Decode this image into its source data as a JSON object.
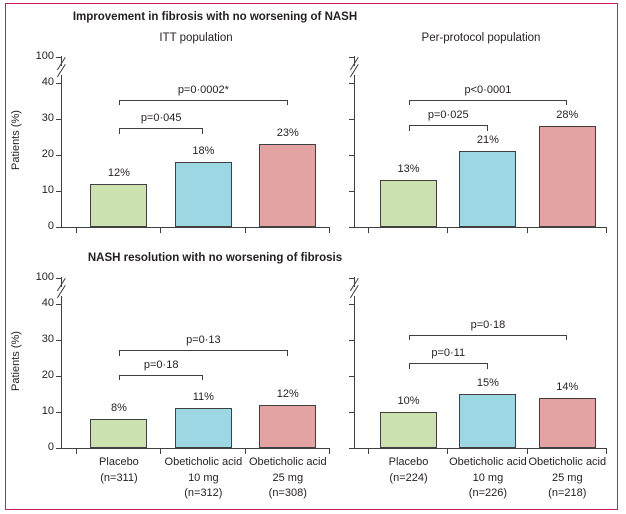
{
  "figure": {
    "frame_color": "#c81e5a",
    "text_color": "#231f20",
    "axis_color": "#404040",
    "bar_border_color": "#404040",
    "bar_colors": [
      "#cbe2b0",
      "#9ed7e4",
      "#e2a3a2"
    ],
    "y_axis": {
      "title": "Patients (%)",
      "ticks": [
        0,
        10,
        20,
        30,
        40
      ],
      "break_label": "100"
    }
  },
  "chart_data": [
    {
      "type": "bar",
      "section_title": "Improvement in fibrosis with no worsening of NASH",
      "subtitle": "ITT population",
      "categories": [
        "Placebo (n=311)",
        "Obeticholic acid 10 mg (n=312)",
        "Obeticholic acid 25 mg (n=308)"
      ],
      "category_lines": [
        [
          "Placebo",
          "(n=311)"
        ],
        [
          "Obeticholic acid",
          "10 mg",
          "(n=312)"
        ],
        [
          "Obeticholic acid",
          "25 mg",
          "(n=308)"
        ]
      ],
      "values": [
        12,
        18,
        23
      ],
      "bar_labels": [
        "12%",
        "18%",
        "23%"
      ],
      "ylabel": "Patients (%)",
      "yticks": [
        0,
        10,
        20,
        30,
        40
      ],
      "y_break_label": "100",
      "ylim_visible": [
        0,
        45
      ],
      "significance": [
        {
          "label": "p=0·045",
          "between": [
            0,
            1
          ],
          "height": 27.5
        },
        {
          "label": "p=0·0002*",
          "between": [
            0,
            2
          ],
          "height": 35.3
        }
      ]
    },
    {
      "type": "bar",
      "section_title": "Improvement in fibrosis with no worsening of NASH",
      "subtitle": "Per-protocol population",
      "categories": [
        "Placebo (n=224)",
        "Obeticholic acid 10 mg (n=226)",
        "Obeticholic acid 25 mg (n=218)"
      ],
      "category_lines": [
        [
          "Placebo",
          "(n=224)"
        ],
        [
          "Obeticholic acid",
          "10 mg",
          "(n=226)"
        ],
        [
          "Obeticholic acid",
          "25 mg",
          "(n=218)"
        ]
      ],
      "values": [
        13,
        21,
        28
      ],
      "bar_labels": [
        "13%",
        "21%",
        "28%"
      ],
      "ylabel": "Patients (%)",
      "yticks": [
        0,
        10,
        20,
        30,
        40
      ],
      "y_break_label": "100",
      "ylim_visible": [
        0,
        45
      ],
      "significance": [
        {
          "label": "p=0·025",
          "between": [
            0,
            1
          ],
          "height": 28.3
        },
        {
          "label": "p<0·0001",
          "between": [
            0,
            2
          ],
          "height": 35.3
        }
      ]
    },
    {
      "type": "bar",
      "section_title": "NASH resolution with no worsening of fibrosis",
      "subtitle": null,
      "categories": [
        "Placebo (n=311)",
        "Obeticholic acid 10 mg (n=312)",
        "Obeticholic acid 25 mg (n=308)"
      ],
      "category_lines": [
        [
          "Placebo",
          "(n=311)"
        ],
        [
          "Obeticholic acid",
          "10 mg",
          "(n=312)"
        ],
        [
          "Obeticholic acid",
          "25 mg",
          "(n=308)"
        ]
      ],
      "values": [
        8,
        11,
        12
      ],
      "bar_labels": [
        "8%",
        "11%",
        "12%"
      ],
      "ylabel": "Patients (%)",
      "yticks": [
        0,
        10,
        20,
        30,
        40
      ],
      "y_break_label": "100",
      "ylim_visible": [
        0,
        45
      ],
      "significance": [
        {
          "label": "p=0·18",
          "between": [
            0,
            1
          ],
          "height": 20.3
        },
        {
          "label": "p=0·13",
          "between": [
            0,
            2
          ],
          "height": 27.2
        }
      ]
    },
    {
      "type": "bar",
      "section_title": "NASH resolution with no worsening of fibrosis",
      "subtitle": null,
      "categories": [
        "Placebo (n=224)",
        "Obeticholic acid 10 mg (n=226)",
        "Obeticholic acid 25 mg (n=218)"
      ],
      "category_lines": [
        [
          "Placebo",
          "(n=224)"
        ],
        [
          "Obeticholic acid",
          "10 mg",
          "(n=226)"
        ],
        [
          "Obeticholic acid",
          "25 mg",
          "(n=218)"
        ]
      ],
      "values": [
        10,
        15,
        14
      ],
      "bar_labels": [
        "10%",
        "15%",
        "14%"
      ],
      "ylabel": "Patients (%)",
      "yticks": [
        0,
        10,
        20,
        30,
        40
      ],
      "y_break_label": "100",
      "ylim_visible": [
        0,
        45
      ],
      "significance": [
        {
          "label": "p=0·11",
          "between": [
            0,
            1
          ],
          "height": 23.6
        },
        {
          "label": "p=0·18",
          "between": [
            0,
            2
          ],
          "height": 31.4
        }
      ]
    }
  ]
}
